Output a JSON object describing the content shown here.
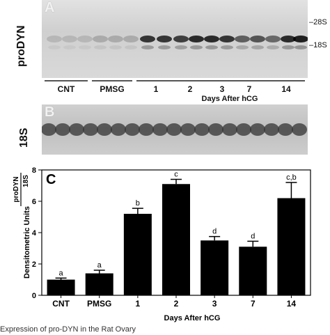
{
  "panel_a": {
    "letter": "A",
    "ylabel": "proDYN",
    "markers": [
      "28S",
      "18S"
    ],
    "lanes": [
      "CNT",
      "PMSG",
      "1",
      "2",
      "3",
      "7",
      "14"
    ],
    "axis_title": "Days After hCG"
  },
  "panel_b": {
    "letter": "B",
    "ylabel": "18S"
  },
  "panel_c": {
    "letter": "C",
    "chart_data": {
      "type": "bar",
      "categories": [
        "CNT",
        "PMSG",
        "1",
        "2",
        "3",
        "7",
        "14"
      ],
      "values": [
        1.0,
        1.4,
        5.2,
        7.1,
        3.5,
        3.1,
        6.2
      ],
      "errors": [
        0.1,
        0.2,
        0.35,
        0.3,
        0.25,
        0.35,
        1.0
      ],
      "significance": [
        "a",
        "a",
        "b",
        "c",
        "d",
        "d",
        "c,b"
      ],
      "ylabel": "Densitometric Units",
      "ylabel_ratio_top": "proDYN",
      "ylabel_ratio_bottom": "18S",
      "xlabel": "Days After hCG",
      "ylim": [
        0,
        8
      ],
      "yticks": [
        "0",
        "2",
        "4",
        "6",
        "8"
      ],
      "bar_color": "#000000"
    }
  },
  "caption": "Expression of pro-DYN in the Rat Ovary"
}
